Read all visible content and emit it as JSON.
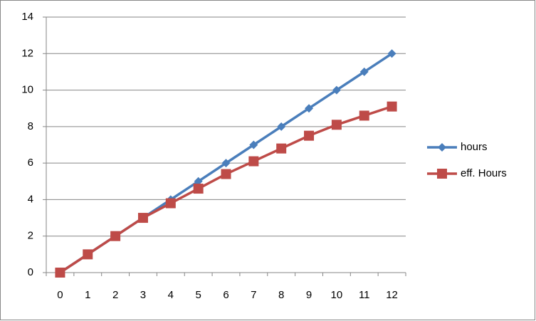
{
  "chart_data": {
    "type": "line",
    "categories": [
      "0",
      "1",
      "2",
      "3",
      "4",
      "5",
      "6",
      "7",
      "8",
      "9",
      "10",
      "11",
      "12"
    ],
    "series": [
      {
        "name": "hours",
        "color": "#4a7ebb",
        "marker": "diamond",
        "values": [
          0,
          1,
          2,
          3,
          4,
          5,
          6,
          7,
          8,
          9,
          10,
          11,
          12
        ]
      },
      {
        "name": "eff. Hours",
        "color": "#be4b48",
        "marker": "square",
        "values": [
          0,
          1,
          2,
          3,
          3.8,
          4.6,
          5.4,
          6.1,
          6.8,
          7.5,
          8.1,
          8.6,
          9.1
        ]
      }
    ],
    "ylim": [
      0,
      14
    ],
    "yticks": [
      0,
      2,
      4,
      6,
      8,
      10,
      12,
      14
    ],
    "grid": true,
    "legend": "right"
  }
}
